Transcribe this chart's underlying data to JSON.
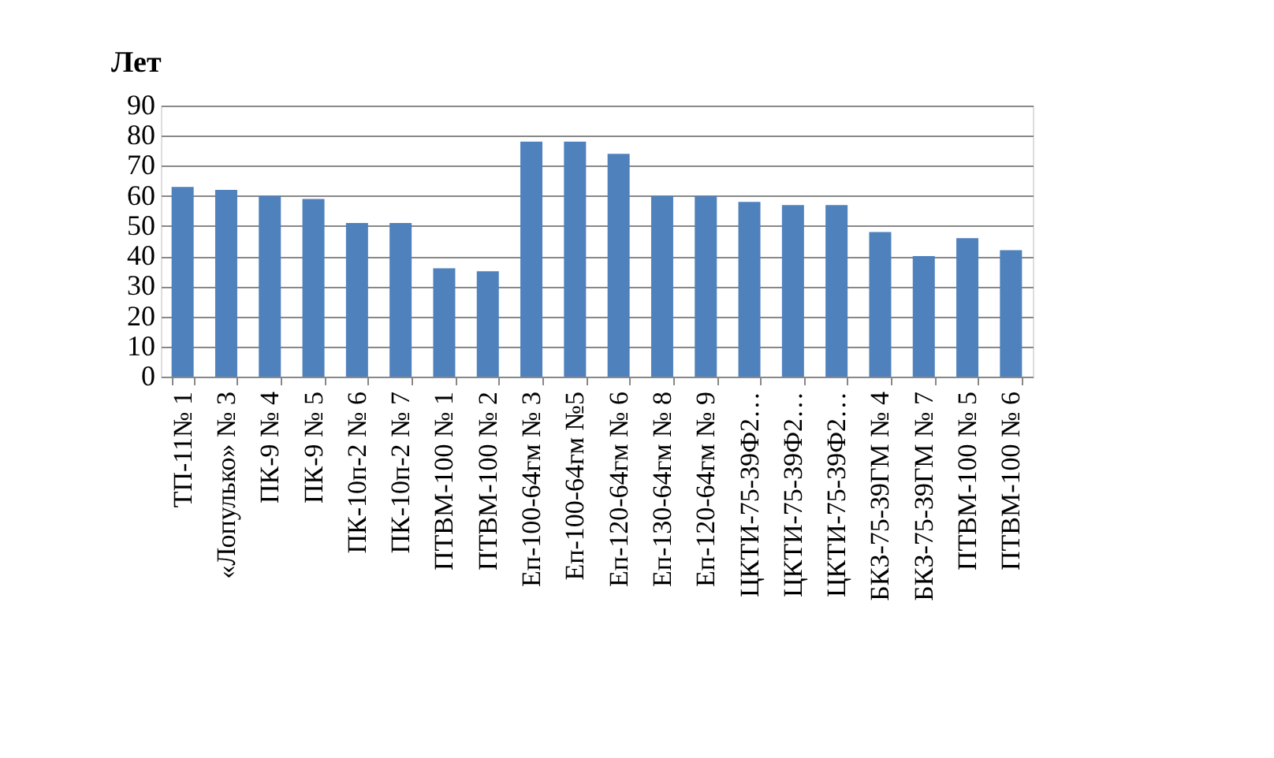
{
  "chart_data": {
    "type": "bar",
    "ylabel": "Лет",
    "categories": [
      "ТП-11№ 1",
      "«Лопулько» № 3",
      "ПК-9 № 4",
      "ПК-9 № 5",
      "ПК-10п-2 № 6",
      "ПК-10п-2 № 7",
      "ПТВМ-100 № 1",
      "ПТВМ-100 № 2",
      "Еп-100-64гм № 3",
      "Еп-100-64гм №5",
      "Еп-120-64гм № 6",
      "Еп-130-64гм № 8",
      "Еп-120-64гм № 9",
      "ЦКТИ-75-39Ф2…",
      "ЦКТИ-75-39Ф2…",
      "ЦКТИ-75-39Ф2…",
      "БКЗ-75-39ГМ № 4",
      "БКЗ-75-39ГМ № 7",
      "ПТВМ-100 № 5",
      "ПТВМ-100 № 6"
    ],
    "values": [
      63,
      62,
      60,
      59,
      51,
      51,
      36,
      35,
      78,
      78,
      74,
      60,
      60,
      58,
      57,
      57,
      48,
      40,
      46,
      42
    ],
    "color": "#4f81bd",
    "ylim": [
      0,
      90
    ],
    "yticks": [
      0,
      10,
      20,
      30,
      40,
      50,
      60,
      70,
      80,
      90
    ],
    "grid": "y"
  }
}
